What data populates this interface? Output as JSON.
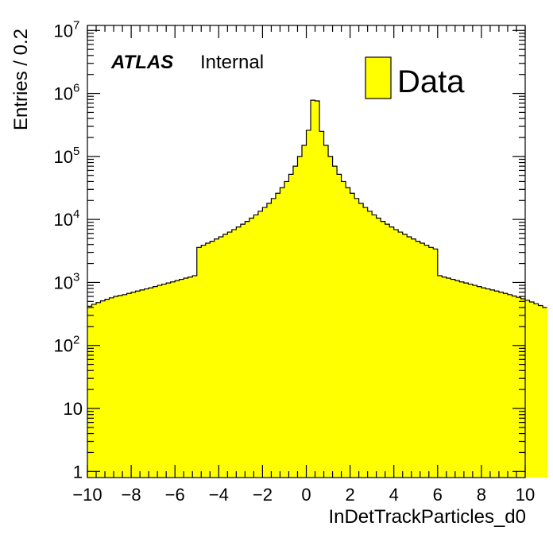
{
  "chart_data": {
    "type": "bar",
    "xlabel": "InDetTrackParticles_d0",
    "ylabel": "Entries / 0.2",
    "xlim": [
      -10,
      10
    ],
    "ylim": [
      0.8,
      12000000
    ],
    "yscale": "log",
    "bin_width": 0.2,
    "fill_color": "#ffff00",
    "line_color": "#000000",
    "label_atlas": "ATLAS",
    "label_status": "Internal",
    "legend": {
      "entry": "Data",
      "placement": "top-right"
    },
    "x_tick_labels": [
      "−10",
      "−8",
      "−6",
      "−4",
      "−2",
      "0",
      "2",
      "4",
      "6",
      "8",
      "10"
    ],
    "x_tick_values": [
      -10,
      -8,
      -6,
      -4,
      -2,
      0,
      2,
      4,
      6,
      8,
      10
    ],
    "y_tick_labels": [
      {
        "base": "1",
        "exp": ""
      },
      {
        "base": "10",
        "exp": ""
      },
      {
        "base": "10",
        "exp": "2"
      },
      {
        "base": "10",
        "exp": "3"
      },
      {
        "base": "10",
        "exp": "4"
      },
      {
        "base": "10",
        "exp": "5"
      },
      {
        "base": "10",
        "exp": "6"
      },
      {
        "base": "10",
        "exp": "7"
      }
    ],
    "y_tick_values": [
      1,
      10,
      100,
      1000,
      10000,
      100000,
      1000000,
      10000000
    ],
    "bin_edges_low": -10,
    "values": [
      420,
      450,
      480,
      510,
      540,
      570,
      600,
      620,
      640,
      670,
      700,
      730,
      760,
      790,
      820,
      860,
      900,
      940,
      980,
      1020,
      1070,
      1120,
      1170,
      1220,
      1280,
      3600,
      3900,
      4200,
      4500,
      4900,
      5300,
      5800,
      6300,
      6900,
      7600,
      8400,
      9300,
      10500,
      11800,
      13500,
      15500,
      18000,
      21500,
      26000,
      32000,
      40000,
      52000,
      70000,
      100000,
      150000,
      260000,
      780000,
      760000,
      250000,
      150000,
      100000,
      70000,
      52000,
      40000,
      32000,
      26000,
      21500,
      18000,
      15500,
      13500,
      11800,
      10500,
      9300,
      8400,
      7600,
      6900,
      6300,
      5800,
      5300,
      4900,
      4500,
      4200,
      3900,
      3600,
      3400,
      1280,
      1220,
      1170,
      1120,
      1070,
      1020,
      980,
      940,
      900,
      860,
      820,
      790,
      760,
      730,
      700,
      670,
      640,
      610,
      580,
      550,
      520,
      490,
      460,
      430,
      400
    ]
  }
}
